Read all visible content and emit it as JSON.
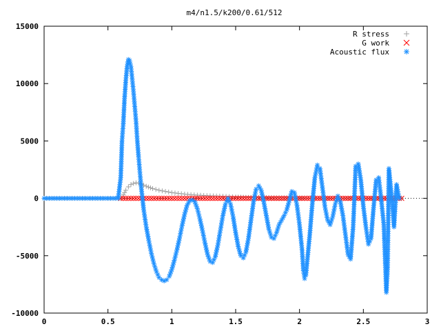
{
  "chart_data": {
    "type": "scatter",
    "title": "m4/n1.5/k200/0.61/512",
    "xlim": [
      0,
      3
    ],
    "ylim": [
      -10000,
      15000
    ],
    "x_ticks": [
      "0",
      "0.5",
      "1",
      "1.5",
      "2",
      "2.5",
      "3"
    ],
    "x_tick_values": [
      0,
      0.5,
      1,
      1.5,
      2,
      2.5,
      3
    ],
    "y_ticks": [
      "15000",
      "10000",
      "5000",
      "0",
      "-5000",
      "-10000"
    ],
    "y_tick_values": [
      15000,
      10000,
      5000,
      0,
      -5000,
      -10000
    ],
    "legend_position": "top-right",
    "grid": false,
    "series": [
      {
        "name": "R stress",
        "marker": "plus",
        "color": "#a0a0a0",
        "points": [
          [
            0.0,
            0
          ],
          [
            0.1,
            0
          ],
          [
            0.2,
            0
          ],
          [
            0.3,
            0
          ],
          [
            0.4,
            0
          ],
          [
            0.5,
            0
          ],
          [
            0.6,
            0
          ],
          [
            0.62,
            300
          ],
          [
            0.64,
            700
          ],
          [
            0.66,
            1000
          ],
          [
            0.68,
            1200
          ],
          [
            0.7,
            1300
          ],
          [
            0.72,
            1350
          ],
          [
            0.74,
            1320
          ],
          [
            0.76,
            1250
          ],
          [
            0.78,
            1150
          ],
          [
            0.8,
            1050
          ],
          [
            0.85,
            850
          ],
          [
            0.9,
            700
          ],
          [
            0.95,
            600
          ],
          [
            1.0,
            500
          ],
          [
            1.05,
            430
          ],
          [
            1.1,
            370
          ],
          [
            1.15,
            320
          ],
          [
            1.2,
            280
          ],
          [
            1.25,
            250
          ],
          [
            1.3,
            220
          ],
          [
            1.35,
            200
          ],
          [
            1.4,
            180
          ],
          [
            1.45,
            150
          ],
          [
            1.5,
            120
          ],
          [
            1.6,
            80
          ],
          [
            1.7,
            60
          ],
          [
            1.8,
            40
          ],
          [
            1.9,
            30
          ],
          [
            2.0,
            20
          ],
          [
            2.2,
            10
          ],
          [
            2.4,
            5
          ],
          [
            2.6,
            0
          ],
          [
            2.8,
            0
          ]
        ]
      },
      {
        "name": "G work",
        "marker": "cross",
        "color": "#ff0000",
        "points": [
          [
            0.6,
            0
          ],
          [
            0.7,
            0
          ],
          [
            0.8,
            0
          ],
          [
            0.9,
            0
          ],
          [
            1.0,
            0
          ],
          [
            1.1,
            0
          ],
          [
            1.2,
            0
          ],
          [
            1.3,
            0
          ],
          [
            1.4,
            0
          ],
          [
            1.5,
            0
          ],
          [
            1.6,
            0
          ],
          [
            1.7,
            0
          ],
          [
            1.8,
            0
          ],
          [
            1.9,
            0
          ],
          [
            2.0,
            0
          ],
          [
            2.1,
            0
          ],
          [
            2.2,
            0
          ],
          [
            2.3,
            0
          ],
          [
            2.4,
            0
          ],
          [
            2.5,
            0
          ],
          [
            2.6,
            0
          ],
          [
            2.7,
            0
          ],
          [
            2.8,
            0
          ]
        ]
      },
      {
        "name": "Acoustic flux",
        "marker": "star",
        "color": "#1e90ff",
        "points": [
          [
            0.0,
            0
          ],
          [
            0.1,
            0
          ],
          [
            0.2,
            0
          ],
          [
            0.3,
            0
          ],
          [
            0.4,
            0
          ],
          [
            0.5,
            0
          ],
          [
            0.58,
            0
          ],
          [
            0.6,
            1800
          ],
          [
            0.61,
            5000
          ],
          [
            0.62,
            6500
          ],
          [
            0.63,
            8700
          ],
          [
            0.64,
            10300
          ],
          [
            0.65,
            11500
          ],
          [
            0.66,
            12100
          ],
          [
            0.67,
            12000
          ],
          [
            0.68,
            11500
          ],
          [
            0.69,
            10400
          ],
          [
            0.7,
            9300
          ],
          [
            0.71,
            8000
          ],
          [
            0.72,
            6700
          ],
          [
            0.73,
            5000
          ],
          [
            0.74,
            3600
          ],
          [
            0.75,
            2300
          ],
          [
            0.76,
            1000
          ],
          [
            0.77,
            0
          ],
          [
            0.78,
            -1000
          ],
          [
            0.8,
            -2500
          ],
          [
            0.82,
            -3700
          ],
          [
            0.84,
            -4800
          ],
          [
            0.86,
            -5700
          ],
          [
            0.88,
            -6400
          ],
          [
            0.9,
            -6900
          ],
          [
            0.92,
            -7100
          ],
          [
            0.94,
            -7200
          ],
          [
            0.96,
            -7100
          ],
          [
            0.98,
            -6800
          ],
          [
            1.0,
            -6200
          ],
          [
            1.02,
            -5400
          ],
          [
            1.04,
            -4500
          ],
          [
            1.06,
            -3500
          ],
          [
            1.08,
            -2400
          ],
          [
            1.1,
            -1400
          ],
          [
            1.12,
            -600
          ],
          [
            1.14,
            -200
          ],
          [
            1.16,
            -150
          ],
          [
            1.18,
            -300
          ],
          [
            1.2,
            -900
          ],
          [
            1.22,
            -1800
          ],
          [
            1.24,
            -2800
          ],
          [
            1.26,
            -3900
          ],
          [
            1.28,
            -4900
          ],
          [
            1.3,
            -5500
          ],
          [
            1.32,
            -5600
          ],
          [
            1.34,
            -5100
          ],
          [
            1.36,
            -4100
          ],
          [
            1.38,
            -2800
          ],
          [
            1.4,
            -1500
          ],
          [
            1.42,
            -500
          ],
          [
            1.44,
            0
          ],
          [
            1.46,
            -500
          ],
          [
            1.48,
            -1600
          ],
          [
            1.5,
            -3000
          ],
          [
            1.52,
            -4200
          ],
          [
            1.54,
            -5000
          ],
          [
            1.56,
            -5200
          ],
          [
            1.58,
            -4700
          ],
          [
            1.6,
            -3500
          ],
          [
            1.62,
            -1900
          ],
          [
            1.64,
            -300
          ],
          [
            1.66,
            800
          ],
          [
            1.68,
            1100
          ],
          [
            1.7,
            700
          ],
          [
            1.72,
            -300
          ],
          [
            1.74,
            -1500
          ],
          [
            1.76,
            -2700
          ],
          [
            1.78,
            -3400
          ],
          [
            1.8,
            -3500
          ],
          [
            1.82,
            -3000
          ],
          [
            1.84,
            -2300
          ],
          [
            1.86,
            -1900
          ],
          [
            1.88,
            -1500
          ],
          [
            1.9,
            -1000
          ],
          [
            1.92,
            -200
          ],
          [
            1.94,
            600
          ],
          [
            1.96,
            500
          ],
          [
            1.98,
            -600
          ],
          [
            2.0,
            -2300
          ],
          [
            2.02,
            -4500
          ],
          [
            2.03,
            -6300
          ],
          [
            2.04,
            -7000
          ],
          [
            2.05,
            -6700
          ],
          [
            2.06,
            -5500
          ],
          [
            2.08,
            -3200
          ],
          [
            2.1,
            -500
          ],
          [
            2.12,
            1800
          ],
          [
            2.14,
            2900
          ],
          [
            2.16,
            2600
          ],
          [
            2.18,
            900
          ],
          [
            2.2,
            -800
          ],
          [
            2.22,
            -1900
          ],
          [
            2.24,
            -2300
          ],
          [
            2.26,
            -1600
          ],
          [
            2.28,
            -500
          ],
          [
            2.3,
            200
          ],
          [
            2.32,
            -300
          ],
          [
            2.34,
            -1500
          ],
          [
            2.36,
            -3200
          ],
          [
            2.38,
            -4900
          ],
          [
            2.4,
            -5300
          ],
          [
            2.42,
            -2500
          ],
          [
            2.44,
            2800
          ],
          [
            2.46,
            3000
          ],
          [
            2.48,
            1600
          ],
          [
            2.5,
            -700
          ],
          [
            2.52,
            -2500
          ],
          [
            2.54,
            -4000
          ],
          [
            2.56,
            -3500
          ],
          [
            2.58,
            -800
          ],
          [
            2.6,
            1600
          ],
          [
            2.62,
            1800
          ],
          [
            2.64,
            -100
          ],
          [
            2.66,
            -2300
          ],
          [
            2.68,
            -8200
          ],
          [
            2.69,
            -6000
          ],
          [
            2.7,
            2600
          ],
          [
            2.72,
            300
          ],
          [
            2.74,
            -2500
          ],
          [
            2.76,
            1200
          ],
          [
            2.78,
            0
          ]
        ]
      }
    ]
  }
}
